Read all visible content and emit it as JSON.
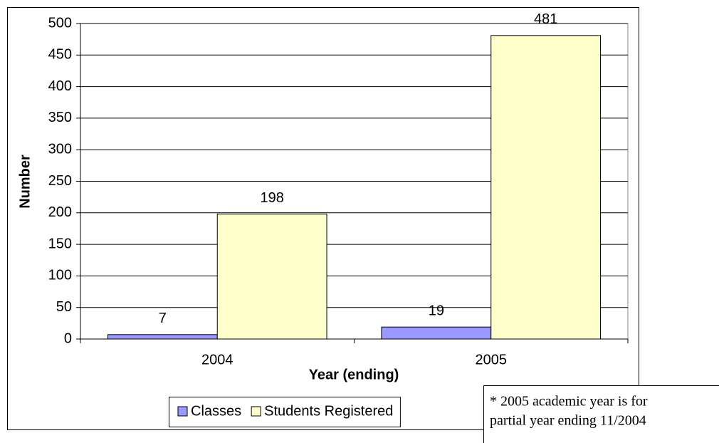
{
  "chart_data": {
    "type": "bar",
    "categories": [
      "2004",
      "2005"
    ],
    "series": [
      {
        "name": "Classes",
        "color": "#9999ff",
        "values": [
          7,
          19
        ]
      },
      {
        "name": "Students Registered",
        "color": "#ffffcc",
        "values": [
          198,
          481
        ]
      }
    ],
    "ylim": [
      0,
      500
    ],
    "yticks": [
      0,
      50,
      100,
      150,
      200,
      250,
      300,
      350,
      400,
      450,
      500
    ],
    "grid": true,
    "y_label": "Number",
    "x_label": "Year (ending)",
    "legend": "bottom",
    "annotations": [
      "* 2005 academic year is for",
      "partial year ending 11/2004"
    ]
  }
}
